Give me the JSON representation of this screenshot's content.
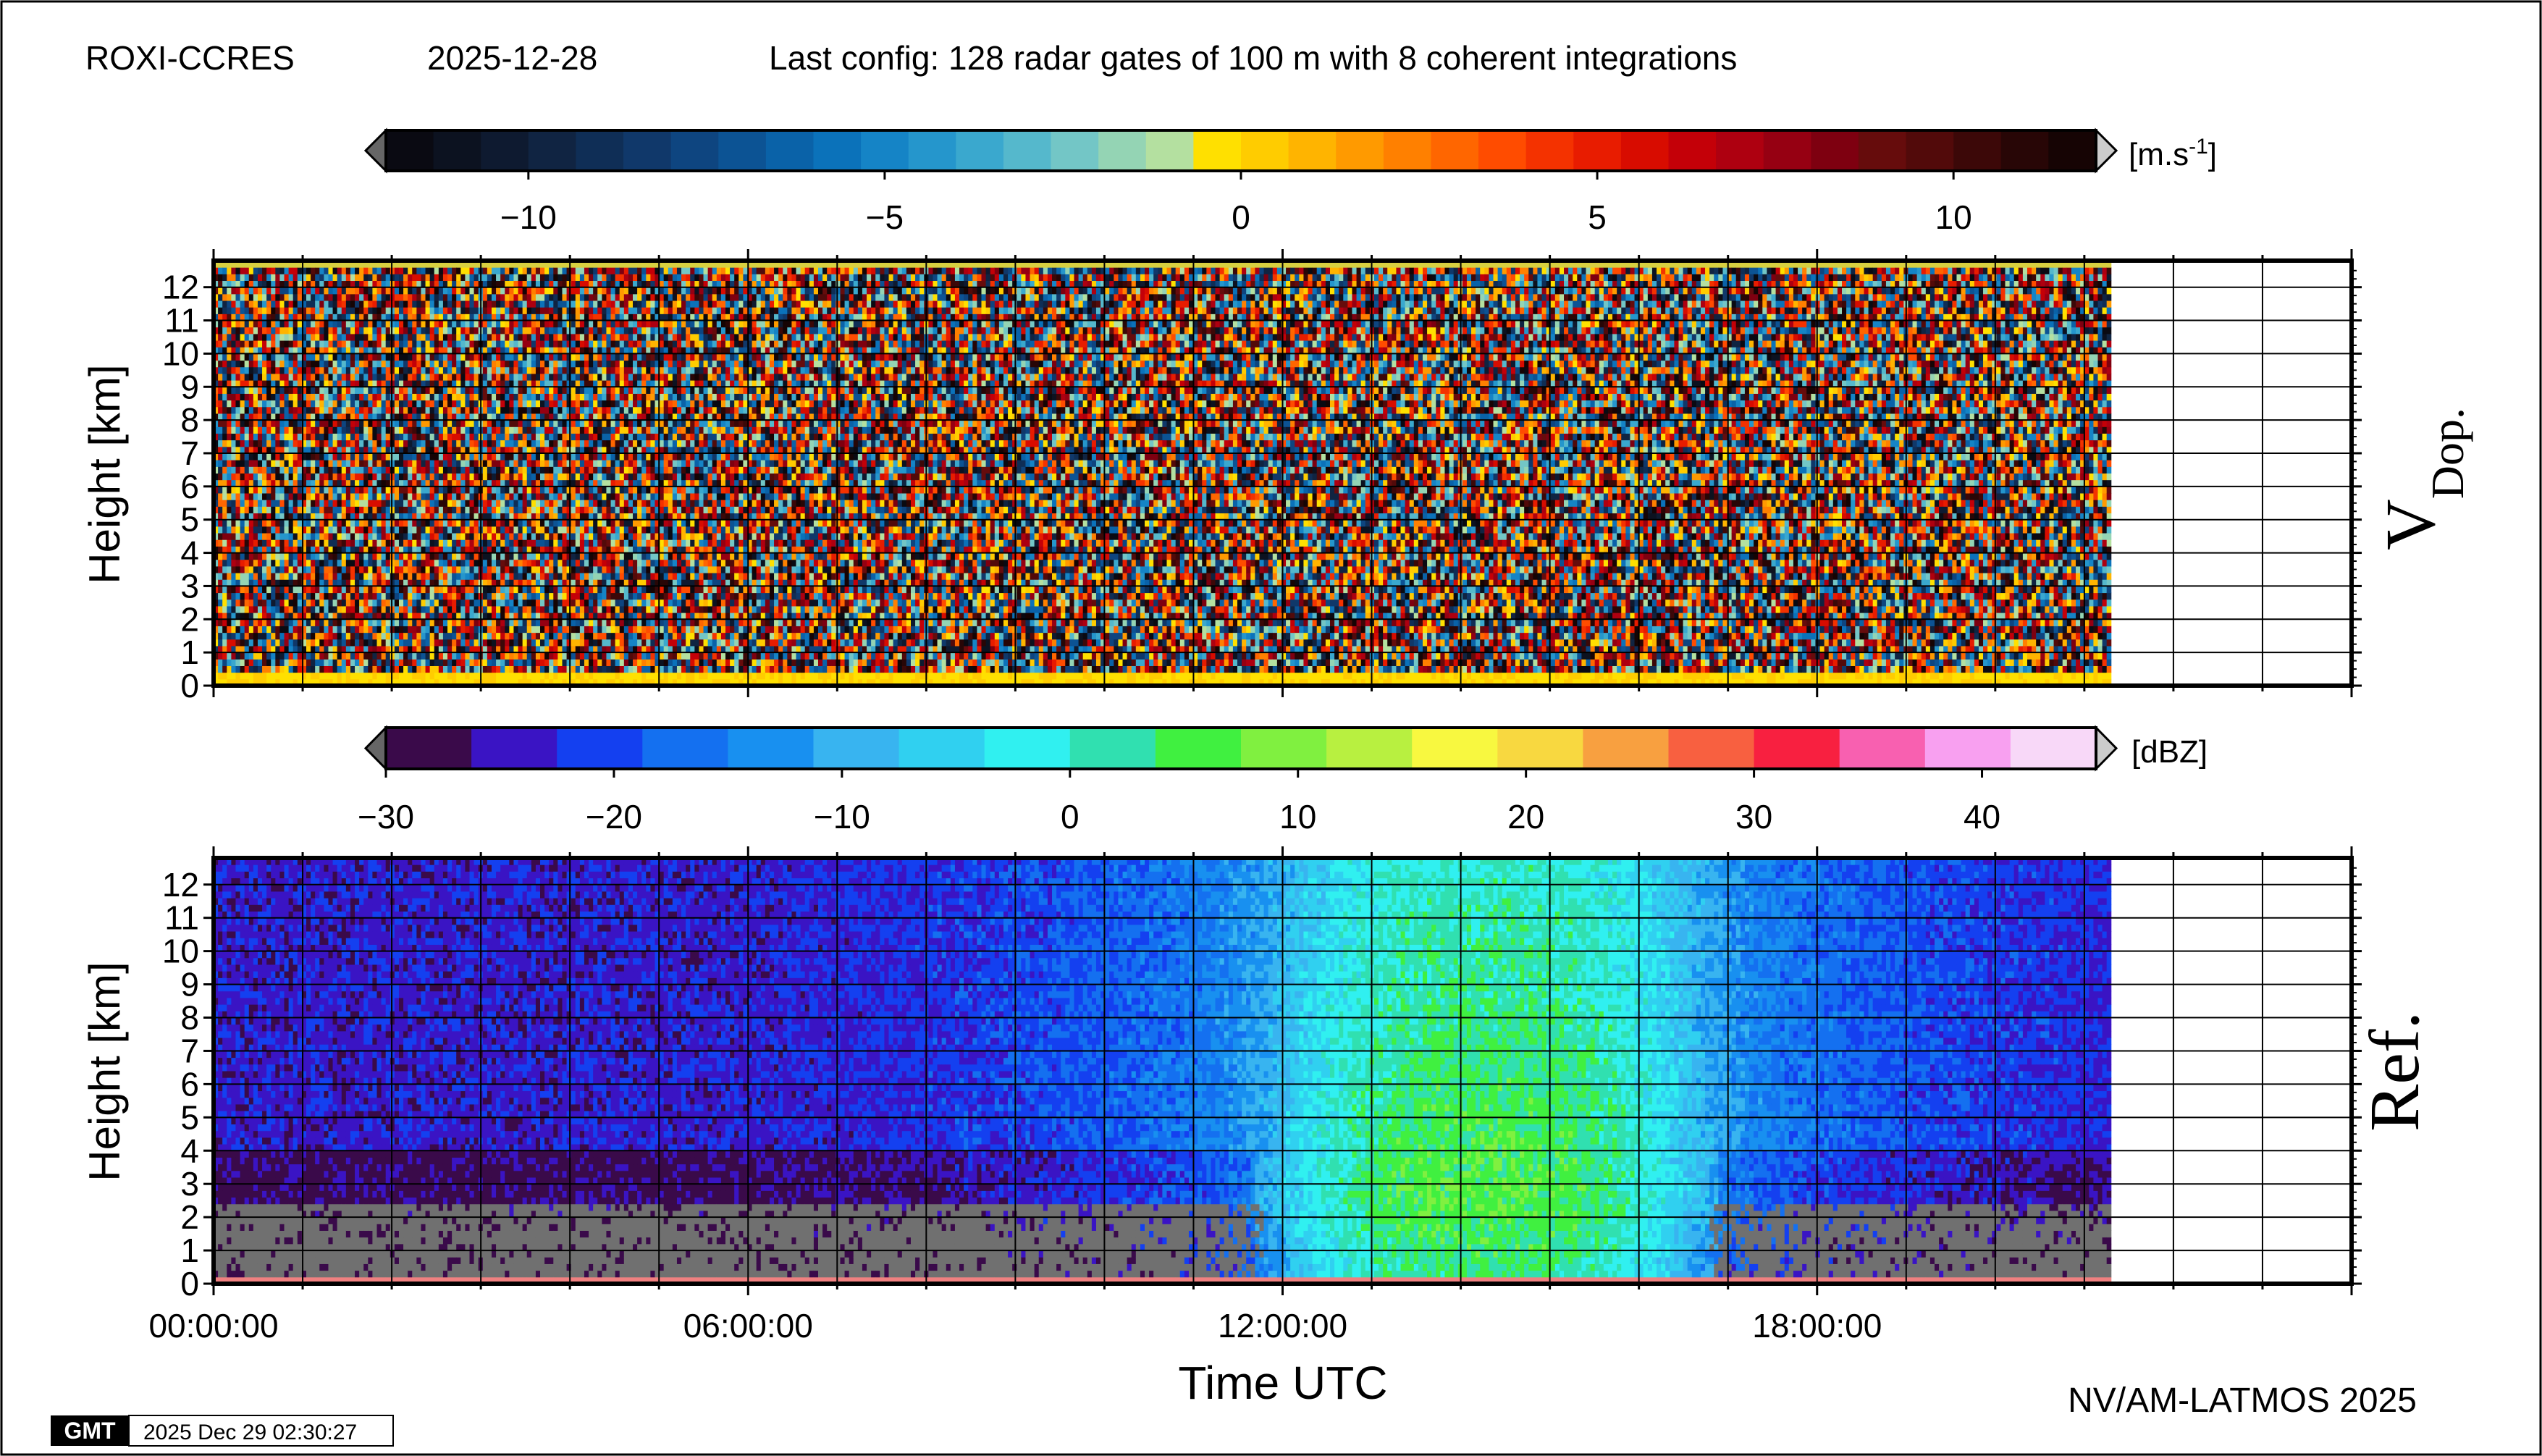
{
  "header": {
    "station": "ROXI-CCRES",
    "date": "2025-12-28",
    "config": "Last config: 128 radar gates of 100 m with 8 coherent integrations"
  },
  "footer": {
    "credit": "NV/AM-LATMOS 2025",
    "gmt_logo": "GMT",
    "timestamp": "2025 Dec 29 02:30:27"
  },
  "chart_data": [
    {
      "type": "heatmap",
      "panel_label_main": "V",
      "panel_label_sub": "Dop.",
      "ylabel": "Height [km]",
      "ylim": [
        0,
        12.8
      ],
      "yticks": [
        0,
        1,
        2,
        3,
        4,
        5,
        6,
        7,
        8,
        9,
        10,
        11,
        12
      ],
      "xlim_hours": [
        0,
        24
      ],
      "data_end_hour": 21.3,
      "grid": true,
      "pattern": "random noise of all velocities above ~0.3 km; near-zero (yellow) band at lowest gates",
      "colorbar": {
        "unit_label": "[m.s",
        "unit_exponent": "-1",
        "unit_close": "]",
        "range": [
          -12,
          12
        ],
        "ticks": [
          -10,
          -5,
          0,
          5,
          10
        ],
        "colors": [
          "#0a0a12",
          "#0c1220",
          "#0e1a30",
          "#102442",
          "#0f2e56",
          "#10386a",
          "#0e4580",
          "#0c5394",
          "#0a62a8",
          "#0b72ba",
          "#1584c6",
          "#2596cc",
          "#3aa8ce",
          "#55b8cc",
          "#73c6c6",
          "#94d4b4",
          "#b4e0a0",
          "#ffe000",
          "#ffcc00",
          "#ffb400",
          "#ff9a00",
          "#ff8000",
          "#ff6600",
          "#ff4c00",
          "#f43200",
          "#e81c00",
          "#d80c00",
          "#c40008",
          "#ae0010",
          "#960012",
          "#7e0010",
          "#660c0c",
          "#520a0a",
          "#3c0808",
          "#280606",
          "#160404"
        ]
      }
    },
    {
      "type": "heatmap",
      "panel_label_main": "Ref.",
      "ylabel": "Height [km]",
      "xlabel": "Time UTC",
      "ylim": [
        0,
        12.8
      ],
      "yticks": [
        0,
        1,
        2,
        3,
        4,
        5,
        6,
        7,
        8,
        9,
        10,
        11,
        12
      ],
      "xlim_hours": [
        0,
        24
      ],
      "xticks": [
        "00:00:00",
        "06:00:00",
        "12:00:00",
        "18:00:00"
      ],
      "xtick_hours": [
        0,
        6,
        12,
        18
      ],
      "data_end_hour": 21.3,
      "grid": true,
      "pattern": "low reflectivity (-30 to -15 dBZ) at night with grey no-data region below ~2.5 km; daytime 11:30-17:30 enhanced returns ~-5 to 10 dBZ peaking near 14:00; thin high-dBZ line at lowest gate",
      "colorbar": {
        "unit_label": "[dBZ]",
        "range": [
          -30,
          45
        ],
        "ticks": [
          -30,
          -20,
          -10,
          0,
          10,
          20,
          30,
          40
        ],
        "colors": [
          "#3a0a4a",
          "#3a14c4",
          "#1440f0",
          "#1470f0",
          "#1890f0",
          "#38b4f0",
          "#30d0f0",
          "#30f0f0",
          "#30e0b0",
          "#40f040",
          "#80f040",
          "#b8f040",
          "#f8f840",
          "#f8d840",
          "#f8a040",
          "#f86040",
          "#f82040",
          "#f860b0",
          "#f8a0f0",
          "#f8d8f8"
        ]
      }
    }
  ]
}
